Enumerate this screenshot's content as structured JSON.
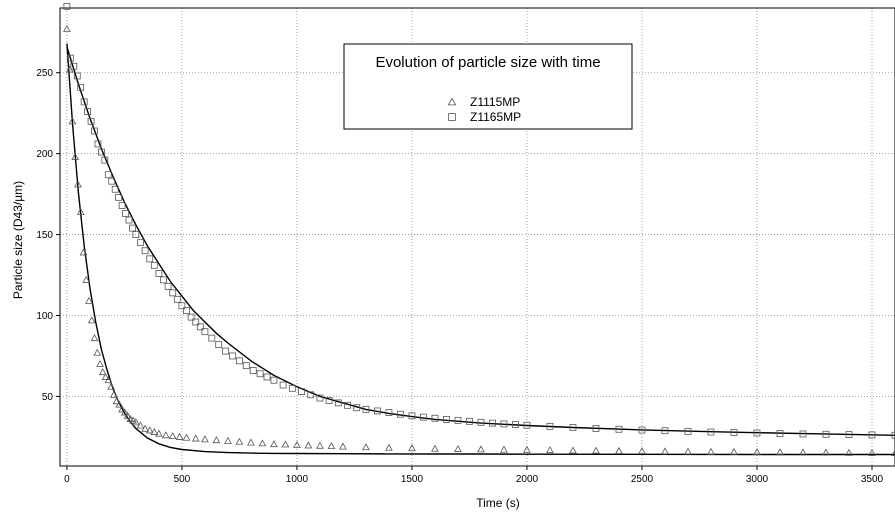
{
  "chart_data": {
    "type": "scatter",
    "title": "Evolution of particle size with time",
    "xlabel": "Time (s)",
    "ylabel": "Particle size (D43/µm)",
    "xlim": [
      -30,
      3600
    ],
    "ylim": [
      7,
      290
    ],
    "xticks": [
      0,
      500,
      1000,
      1500,
      2000,
      2500,
      3000,
      3500
    ],
    "yticks": [
      50,
      100,
      150,
      200,
      250
    ],
    "grid": true,
    "legend_position": "top-center",
    "series": [
      {
        "name": "Z1115MP",
        "marker": "triangle",
        "color": "#555555",
        "x": [
          0,
          12,
          24,
          36,
          48,
          60,
          72,
          84,
          96,
          108,
          120,
          132,
          144,
          156,
          168,
          180,
          192,
          204,
          216,
          228,
          240,
          252,
          264,
          276,
          288,
          300,
          320,
          340,
          360,
          380,
          400,
          430,
          460,
          490,
          520,
          560,
          600,
          650,
          700,
          750,
          800,
          850,
          900,
          950,
          1000,
          1050,
          1100,
          1150,
          1200,
          1300,
          1400,
          1500,
          1600,
          1700,
          1800,
          1900,
          2000,
          2100,
          2200,
          2300,
          2400,
          2500,
          2600,
          2700,
          2800,
          2900,
          3000,
          3100,
          3200,
          3300,
          3400,
          3500,
          3600
        ],
        "values": [
          277,
          252,
          220,
          198,
          181,
          164,
          139,
          122,
          109,
          97,
          86,
          77,
          70,
          65,
          62,
          60,
          56,
          51,
          47,
          45,
          42,
          40,
          38,
          36,
          35,
          34,
          32,
          30,
          29,
          28,
          27,
          26,
          25.5,
          25,
          24.5,
          24,
          23.5,
          23,
          22.5,
          22,
          21.5,
          21,
          20.5,
          20.3,
          20,
          19.7,
          19.5,
          19.3,
          19,
          18.6,
          18.3,
          18,
          17.7,
          17.5,
          17.3,
          17.1,
          17,
          16.8,
          16.6,
          16.5,
          16.3,
          16.2,
          16,
          15.9,
          15.8,
          15.7,
          15.6,
          15.5,
          15.4,
          15.3,
          15.2,
          15.1,
          15
        ]
      },
      {
        "name": "Z1165MP",
        "marker": "square",
        "color": "#555555",
        "x": [
          0,
          15,
          30,
          45,
          60,
          75,
          90,
          105,
          120,
          135,
          150,
          165,
          180,
          195,
          210,
          225,
          240,
          255,
          270,
          285,
          300,
          320,
          340,
          360,
          380,
          400,
          420,
          440,
          460,
          480,
          500,
          520,
          540,
          560,
          580,
          600,
          630,
          660,
          690,
          720,
          750,
          780,
          810,
          840,
          870,
          900,
          940,
          980,
          1020,
          1060,
          1100,
          1140,
          1180,
          1220,
          1260,
          1300,
          1350,
          1400,
          1450,
          1500,
          1550,
          1600,
          1650,
          1700,
          1750,
          1800,
          1850,
          1900,
          1950,
          2000,
          2100,
          2200,
          2300,
          2400,
          2500,
          2600,
          2700,
          2800,
          2900,
          3000,
          3100,
          3200,
          3300,
          3400,
          3500,
          3600
        ],
        "values": [
          291,
          259,
          254,
          248,
          241,
          232,
          226,
          220,
          214,
          206,
          201,
          196,
          187,
          183,
          178,
          173,
          168,
          163,
          159,
          154,
          150,
          145,
          140,
          135,
          131,
          126,
          122,
          118,
          114,
          110,
          106,
          103,
          99,
          96,
          93,
          90,
          86,
          82,
          78,
          75,
          72,
          69,
          66,
          64,
          62,
          60,
          57,
          55,
          53,
          51,
          49,
          47.5,
          46,
          44.5,
          43,
          42,
          41,
          40,
          39,
          38,
          37.2,
          36.5,
          35.8,
          35.2,
          34.6,
          34,
          33.5,
          33,
          32.6,
          32.2,
          31.5,
          30.8,
          30.2,
          29.7,
          29.2,
          28.8,
          28.4,
          28,
          27.7,
          27.4,
          27.1,
          26.8,
          26.6,
          26.4,
          26.2,
          26
        ]
      }
    ],
    "fit_lines": [
      {
        "x": [
          0,
          25,
          50,
          75,
          100,
          125,
          150,
          175,
          200,
          225,
          250,
          275,
          300,
          350,
          400,
          450,
          500,
          600,
          700,
          800,
          900,
          1000,
          1200,
          1400,
          1600,
          1800,
          2000,
          2500,
          3000,
          3600
        ],
        "values": [
          268,
          217,
          176,
          143,
          117,
          96,
          79,
          66,
          55,
          46.5,
          39.8,
          34.4,
          30.2,
          24.3,
          20.7,
          18.5,
          17.2,
          15.9,
          15.3,
          15,
          14.8,
          14.7,
          14.6,
          14.5,
          14.4,
          14.4,
          14.3,
          14.2,
          14.1,
          14.1
        ]
      },
      {
        "x": [
          0,
          50,
          100,
          150,
          200,
          250,
          300,
          350,
          400,
          450,
          500,
          550,
          600,
          650,
          700,
          800,
          900,
          1000,
          1100,
          1200,
          1300,
          1400,
          1500,
          1600,
          1800,
          2000,
          2200,
          2500,
          2800,
          3200,
          3600
        ],
        "values": [
          266,
          243,
          222,
          203,
          186,
          170,
          156,
          143,
          132,
          121,
          112,
          103,
          96,
          89,
          83,
          72,
          63,
          56,
          50,
          46,
          42,
          39.5,
          37.5,
          35.8,
          33.5,
          32,
          30.8,
          29.3,
          28.2,
          27,
          26
        ]
      }
    ]
  }
}
